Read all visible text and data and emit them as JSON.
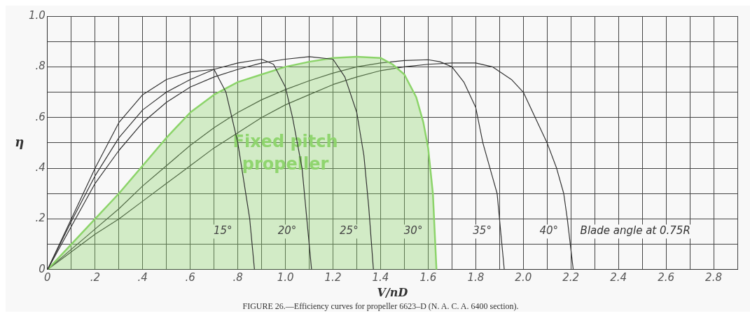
{
  "chart_data": {
    "type": "line",
    "xlabel": "V/nD",
    "ylabel": "η",
    "annotations": [
      "Fixed pitch propeller",
      "Blade angle at 0.75R",
      "FIGURE 26.—Efficiency curves for propeller 6623–D (N. A. C. A. 6400 section)."
    ],
    "xlim": [
      0,
      2.9
    ],
    "ylim": [
      0,
      1.0
    ],
    "xticks": [
      {
        "value": 0,
        "label": "0"
      },
      {
        "value": 0.1,
        "label": null
      },
      {
        "value": 0.2,
        "label": ".2"
      },
      {
        "value": 0.3,
        "label": null
      },
      {
        "value": 0.4,
        "label": ".4"
      },
      {
        "value": 0.5,
        "label": null
      },
      {
        "value": 0.6,
        "label": ".6"
      },
      {
        "value": 0.7,
        "label": null
      },
      {
        "value": 0.8,
        "label": ".8"
      },
      {
        "value": 0.9,
        "label": null
      },
      {
        "value": 1.0,
        "label": "1.0"
      },
      {
        "value": 1.1,
        "label": null
      },
      {
        "value": 1.2,
        "label": "1.2"
      },
      {
        "value": 1.3,
        "label": null
      },
      {
        "value": 1.4,
        "label": "1.4"
      },
      {
        "value": 1.5,
        "label": null
      },
      {
        "value": 1.6,
        "label": "1.6"
      },
      {
        "value": 1.7,
        "label": null
      },
      {
        "value": 1.8,
        "label": "1.8"
      },
      {
        "value": 1.9,
        "label": null
      },
      {
        "value": 2.0,
        "label": "2.0"
      },
      {
        "value": 2.1,
        "label": null
      },
      {
        "value": 2.2,
        "label": "2.2"
      },
      {
        "value": 2.3,
        "label": null
      },
      {
        "value": 2.4,
        "label": "2.4"
      },
      {
        "value": 2.5,
        "label": null
      },
      {
        "value": 2.6,
        "label": "2.6"
      },
      {
        "value": 2.7,
        "label": null
      },
      {
        "value": 2.8,
        "label": "2.8"
      },
      {
        "value": 2.9,
        "label": null
      }
    ],
    "yticks": [
      {
        "value": 0,
        "label": "0"
      },
      {
        "value": 0.1,
        "label": null
      },
      {
        "value": 0.2,
        "label": ".2"
      },
      {
        "value": 0.3,
        "label": null
      },
      {
        "value": 0.4,
        "label": ".4"
      },
      {
        "value": 0.5,
        "label": null
      },
      {
        "value": 0.6,
        "label": ".6"
      },
      {
        "value": 0.7,
        "label": null
      },
      {
        "value": 0.8,
        "label": ".8"
      },
      {
        "value": 0.9,
        "label": null
      },
      {
        "value": 1.0,
        "label": "1.0"
      }
    ],
    "grid": true,
    "legend": false,
    "marker": "none",
    "line_style": "solid",
    "series": [
      {
        "name": "15°",
        "color": "#333333",
        "x": [
          0,
          0.1,
          0.2,
          0.3,
          0.4,
          0.5,
          0.6,
          0.7,
          0.75,
          0.8,
          0.85,
          0.87
        ],
        "values": [
          0,
          0.2,
          0.4,
          0.58,
          0.69,
          0.75,
          0.78,
          0.79,
          0.7,
          0.5,
          0.2,
          0
        ]
      },
      {
        "name": "20°",
        "color": "#333333",
        "x": [
          0,
          0.1,
          0.2,
          0.3,
          0.4,
          0.5,
          0.6,
          0.7,
          0.8,
          0.9,
          0.95,
          1.0,
          1.03,
          1.07,
          1.09,
          1.11
        ],
        "values": [
          0,
          0.19,
          0.37,
          0.52,
          0.63,
          0.7,
          0.75,
          0.79,
          0.815,
          0.83,
          0.81,
          0.72,
          0.6,
          0.4,
          0.2,
          0
        ]
      },
      {
        "name": "25°",
        "color": "#333333",
        "x": [
          0,
          0.1,
          0.2,
          0.3,
          0.4,
          0.5,
          0.6,
          0.7,
          0.8,
          0.9,
          1.0,
          1.1,
          1.2,
          1.25,
          1.3,
          1.33,
          1.35,
          1.37
        ],
        "values": [
          0,
          0.17,
          0.34,
          0.47,
          0.58,
          0.66,
          0.72,
          0.76,
          0.79,
          0.815,
          0.83,
          0.84,
          0.83,
          0.76,
          0.62,
          0.45,
          0.25,
          0
        ]
      },
      {
        "name": "30°",
        "type": "area",
        "color": "#8cd46a",
        "x": [
          0,
          0.1,
          0.2,
          0.3,
          0.4,
          0.5,
          0.6,
          0.7,
          0.8,
          0.9,
          1.0,
          1.1,
          1.2,
          1.3,
          1.4,
          1.45,
          1.5,
          1.55,
          1.58,
          1.6,
          1.62,
          1.635
        ],
        "values": [
          0,
          0.1,
          0.2,
          0.3,
          0.41,
          0.52,
          0.62,
          0.69,
          0.74,
          0.77,
          0.8,
          0.82,
          0.835,
          0.84,
          0.835,
          0.81,
          0.77,
          0.68,
          0.58,
          0.48,
          0.3,
          0
        ]
      },
      {
        "name": "35°",
        "color": "#333333",
        "x": [
          0,
          0.1,
          0.2,
          0.3,
          0.4,
          0.5,
          0.6,
          0.7,
          0.8,
          0.9,
          1.0,
          1.1,
          1.2,
          1.3,
          1.4,
          1.5,
          1.6,
          1.65,
          1.7,
          1.75,
          1.8,
          1.83,
          1.86,
          1.89,
          1.9,
          1.92
        ],
        "values": [
          0,
          0.08,
          0.16,
          0.24,
          0.33,
          0.41,
          0.49,
          0.56,
          0.62,
          0.67,
          0.71,
          0.745,
          0.775,
          0.8,
          0.815,
          0.825,
          0.828,
          0.82,
          0.8,
          0.74,
          0.64,
          0.5,
          0.4,
          0.3,
          0.2,
          0
        ]
      },
      {
        "name": "40°",
        "color": "#333333",
        "x": [
          0,
          0.1,
          0.2,
          0.3,
          0.4,
          0.5,
          0.6,
          0.7,
          0.8,
          0.9,
          1.0,
          1.1,
          1.2,
          1.3,
          1.4,
          1.5,
          1.6,
          1.7,
          1.8,
          1.87,
          1.95,
          2.0,
          2.05,
          2.1,
          2.14,
          2.17,
          2.185,
          2.21
        ],
        "values": [
          0,
          0.07,
          0.14,
          0.2,
          0.27,
          0.34,
          0.41,
          0.48,
          0.54,
          0.6,
          0.65,
          0.69,
          0.73,
          0.76,
          0.785,
          0.8,
          0.81,
          0.815,
          0.815,
          0.8,
          0.75,
          0.7,
          0.6,
          0.5,
          0.4,
          0.3,
          0.2,
          0
        ]
      }
    ]
  }
}
